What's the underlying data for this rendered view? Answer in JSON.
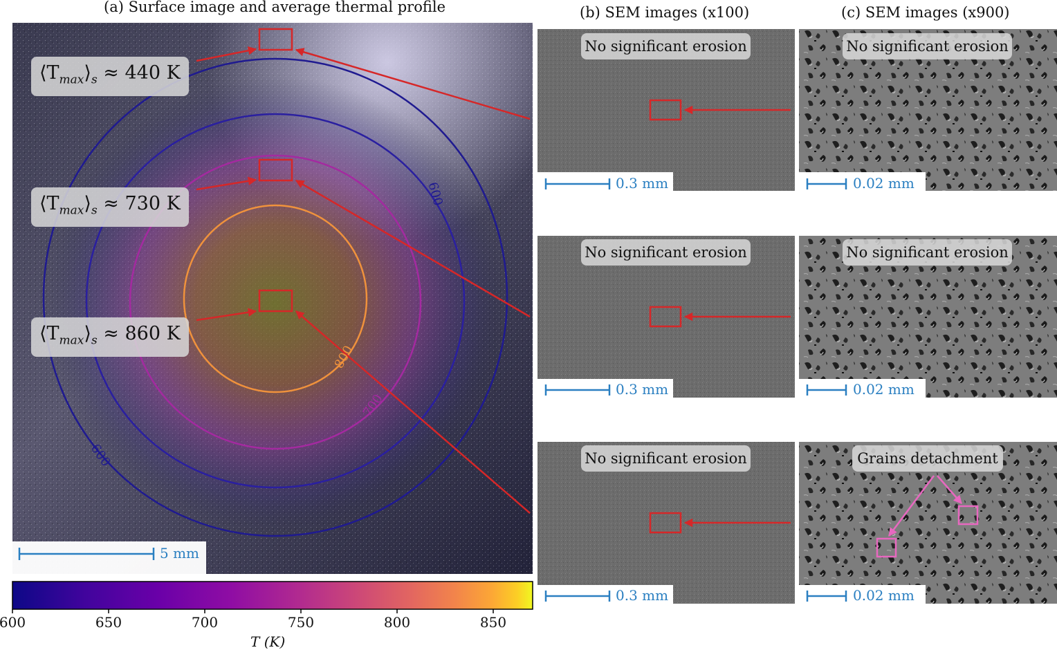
{
  "titles": {
    "a": "(a) Surface image and average thermal profile",
    "b": "(b) SEM images (x100)",
    "c": "(c) SEM images (x900)"
  },
  "temperature_labels": [
    {
      "prefix": "⟨T",
      "sub": "max",
      "suffix": "⟩",
      "subscript_s": "s",
      "value": "≈ 440 K"
    },
    {
      "prefix": "⟨T",
      "sub": "max",
      "suffix": "⟩",
      "subscript_s": "s",
      "value": "≈ 730 K"
    },
    {
      "prefix": "⟨T",
      "sub": "max",
      "suffix": "⟩",
      "subscript_s": "s",
      "value": "≈ 860 K"
    }
  ],
  "contour_labels": {
    "c600_top": "600",
    "c600_bottom": "600",
    "c700": "700",
    "c800": "800"
  },
  "scale_bars": {
    "surface": "5 mm",
    "sem100": "0.3 mm",
    "sem900": "0.02 mm"
  },
  "sem100_labels": [
    "No significant erosion",
    "No significant erosion",
    "No significant erosion"
  ],
  "sem900_labels": [
    "No significant erosion",
    "No significant erosion",
    "Grains detachment"
  ],
  "colorbar": {
    "label": "T (K)",
    "ticks": [
      "600",
      "650",
      "700",
      "750",
      "800",
      "850"
    ],
    "colormap": "plasma",
    "range": [
      600,
      870
    ]
  },
  "colors": {
    "arrow": "#d62728",
    "scale": "#2a7fc1",
    "grain_marker": "#e868c0"
  }
}
